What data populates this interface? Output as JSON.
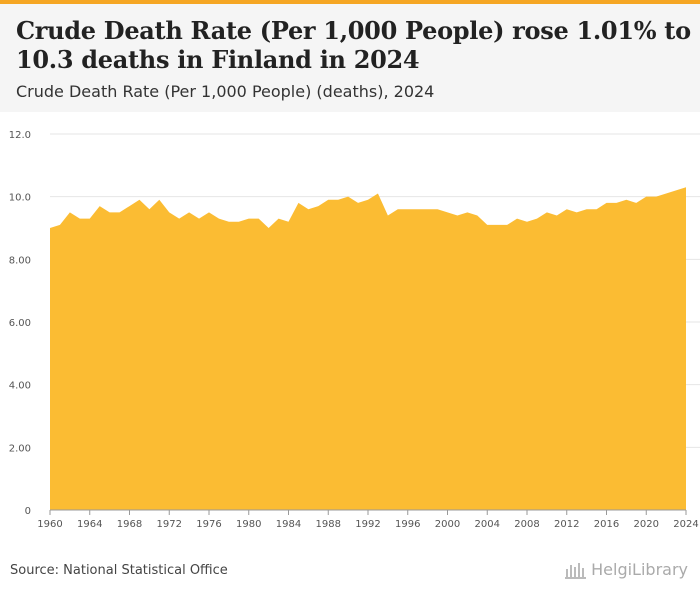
{
  "header": {
    "title": "Crude Death Rate (Per 1,000 People) rose 1.01% to 10.3 deaths in Finland in 2024",
    "subtitle": "Crude Death Rate (Per 1,000 People) (deaths), 2024"
  },
  "footer": {
    "source": "Source: National Statistical Office",
    "brand": "HelgiLibrary"
  },
  "colors": {
    "area_fill": "#fbbc33",
    "accent": "#f5a623",
    "grid": "#e6e6e6"
  },
  "chart_data": {
    "type": "area",
    "title": "Crude Death Rate (Per 1,000 People) rose 1.01% to 10.3 deaths in Finland in 2024",
    "subtitle": "Crude Death Rate (Per 1,000 People) (deaths), 2024",
    "xlabel": "",
    "ylabel": "",
    "ylim": [
      0,
      12
    ],
    "y_ticks": [
      0,
      2,
      4,
      6,
      8,
      10,
      12
    ],
    "y_tick_labels": [
      "0",
      "2.00",
      "4.00",
      "6.00",
      "8.00",
      "10.0",
      "12.0"
    ],
    "x_ticks": [
      1960,
      1964,
      1968,
      1972,
      1976,
      1980,
      1984,
      1988,
      1992,
      1996,
      2000,
      2004,
      2008,
      2012,
      2016,
      2020,
      2024
    ],
    "grid": true,
    "legend": "none",
    "series": [
      {
        "name": "Crude Death Rate (Per 1,000 People)",
        "x": [
          1960,
          1961,
          1962,
          1963,
          1964,
          1965,
          1966,
          1967,
          1968,
          1969,
          1970,
          1971,
          1972,
          1973,
          1974,
          1975,
          1976,
          1977,
          1978,
          1979,
          1980,
          1981,
          1982,
          1983,
          1984,
          1985,
          1986,
          1987,
          1988,
          1989,
          1990,
          1991,
          1992,
          1993,
          1994,
          1995,
          1996,
          1997,
          1998,
          1999,
          2000,
          2001,
          2002,
          2003,
          2004,
          2005,
          2006,
          2007,
          2008,
          2009,
          2010,
          2011,
          2012,
          2013,
          2014,
          2015,
          2016,
          2017,
          2018,
          2019,
          2020,
          2021,
          2022,
          2023,
          2024
        ],
        "values": [
          9.0,
          9.1,
          9.5,
          9.3,
          9.3,
          9.7,
          9.5,
          9.5,
          9.7,
          9.9,
          9.6,
          9.9,
          9.5,
          9.3,
          9.5,
          9.3,
          9.5,
          9.3,
          9.2,
          9.2,
          9.3,
          9.3,
          9.0,
          9.3,
          9.2,
          9.8,
          9.6,
          9.7,
          9.9,
          9.9,
          10.0,
          9.8,
          9.9,
          10.1,
          9.4,
          9.6,
          9.6,
          9.6,
          9.6,
          9.6,
          9.5,
          9.4,
          9.5,
          9.4,
          9.1,
          9.1,
          9.1,
          9.3,
          9.2,
          9.3,
          9.5,
          9.4,
          9.6,
          9.5,
          9.6,
          9.6,
          9.8,
          9.8,
          9.9,
          9.8,
          10.0,
          10.0,
          10.1,
          10.2,
          10.3
        ]
      }
    ]
  }
}
